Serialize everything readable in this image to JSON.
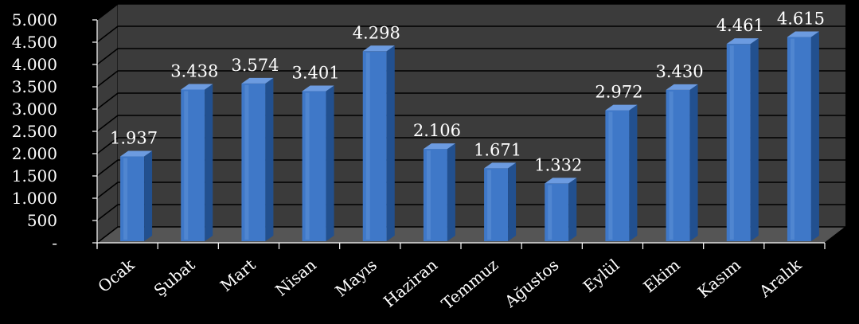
{
  "chart_data": {
    "type": "bar",
    "categories": [
      "Ocak",
      "Şubat",
      "Mart",
      "Nisan",
      "Mayıs",
      "Haziran",
      "Temmuz",
      "Ağustos",
      "Eylül",
      "Ekim",
      "Kasım",
      "Aralık"
    ],
    "values": [
      1937,
      3438,
      3574,
      3401,
      4298,
      2106,
      1671,
      1332,
      2972,
      3430,
      4461,
      4615
    ],
    "value_labels": [
      "1.937",
      "3.438",
      "3.574",
      "3.401",
      "4.298",
      "2.106",
      "1.671",
      "1.332",
      "2.972",
      "3.430",
      "4.461",
      "4.615"
    ],
    "y_ticks": [
      {
        "value": 0,
        "label": "-"
      },
      {
        "value": 500,
        "label": "500"
      },
      {
        "value": 1000,
        "label": "1.000"
      },
      {
        "value": 1500,
        "label": "1.500"
      },
      {
        "value": 2000,
        "label": "2.000"
      },
      {
        "value": 2500,
        "label": "2.500"
      },
      {
        "value": 3000,
        "label": "3.000"
      },
      {
        "value": 3500,
        "label": "3.500"
      },
      {
        "value": 4000,
        "label": "4.000"
      },
      {
        "value": 4500,
        "label": "4.500"
      },
      {
        "value": 5000,
        "label": "5.000"
      }
    ],
    "ylim": [
      0,
      5000
    ],
    "grid": true,
    "style": "3d-column",
    "colors": {
      "bar": "#3f78c8",
      "bar_top": "#6c9be0",
      "bar_side": "#22508f",
      "wall": "#3b3b3b",
      "floor": "#555555",
      "gridline": "#000000",
      "text": "#ffffff"
    }
  }
}
